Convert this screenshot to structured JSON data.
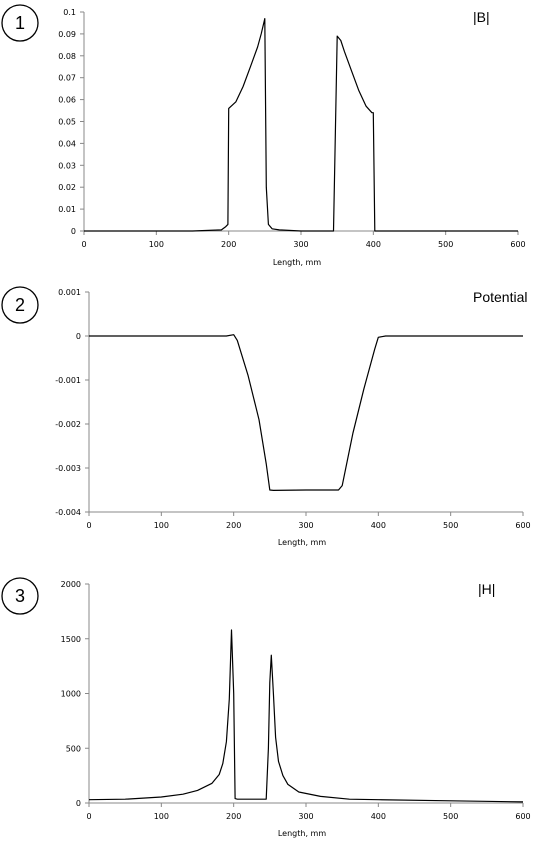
{
  "chart_data": [
    {
      "type": "line",
      "badge": "1",
      "annotation": "|B|",
      "xlabel": "Length, mm",
      "xlim": [
        0,
        600
      ],
      "ylim": [
        0,
        0.1
      ],
      "xticks": [
        "0",
        "100",
        "200",
        "300",
        "400",
        "500",
        "600"
      ],
      "yticks": [
        "0",
        "0.01",
        "0.02",
        "0.03",
        "0.04",
        "0.05",
        "0.06",
        "0.07",
        "0.08",
        "0.09",
        "0.1"
      ],
      "series": [
        {
          "x": [
            0,
            150,
            190,
            196,
            199,
            200,
            210,
            220,
            230,
            240,
            245,
            250,
            252,
            255,
            260,
            270,
            300,
            345,
            350,
            355,
            360,
            370,
            380,
            390,
            398,
            400,
            402,
            420,
            500,
            600
          ],
          "y": [
            0,
            0,
            0.0005,
            0.002,
            0.003,
            0.056,
            0.059,
            0.066,
            0.075,
            0.084,
            0.09,
            0.097,
            0.02,
            0.003,
            0.001,
            0.0005,
            0,
            0,
            0.089,
            0.087,
            0.082,
            0.073,
            0.064,
            0.057,
            0.054,
            0.054,
            0,
            0,
            0,
            0
          ]
        }
      ]
    },
    {
      "type": "line",
      "badge": "2",
      "annotation": "Potential",
      "xlabel": "Length, mm",
      "xlim": [
        0,
        600
      ],
      "ylim": [
        -0.004,
        0.001
      ],
      "xticks": [
        "0",
        "100",
        "200",
        "300",
        "400",
        "500",
        "600"
      ],
      "yticks": [
        "-0.004",
        "-0.003",
        "-0.002",
        "-0.001",
        "0",
        "0.001"
      ],
      "series": [
        {
          "x": [
            0,
            190,
            200,
            205,
            220,
            235,
            245,
            250,
            255,
            300,
            345,
            350,
            355,
            365,
            380,
            395,
            400,
            410,
            600
          ],
          "y": [
            0,
            0,
            3e-05,
            -0.0001,
            -0.0009,
            -0.0019,
            -0.0029,
            -0.0035,
            -0.00351,
            -0.0035,
            -0.0035,
            -0.0034,
            -0.003,
            -0.0022,
            -0.0012,
            -0.0003,
            -3e-05,
            0,
            0
          ]
        }
      ]
    },
    {
      "type": "line",
      "badge": "3",
      "annotation": "|H|",
      "xlabel": "Length, mm",
      "xlim": [
        0,
        600
      ],
      "ylim": [
        0,
        2000
      ],
      "xticks": [
        "0",
        "100",
        "200",
        "300",
        "400",
        "500",
        "600"
      ],
      "yticks": [
        "0",
        "500",
        "1000",
        "1500",
        "2000"
      ],
      "series": [
        {
          "x": [
            0,
            50,
            100,
            130,
            150,
            170,
            180,
            185,
            190,
            194,
            197,
            200,
            202,
            205,
            245,
            248,
            250,
            252,
            255,
            258,
            262,
            268,
            275,
            290,
            320,
            360,
            400,
            500,
            600
          ],
          "y": [
            30,
            35,
            55,
            80,
            115,
            180,
            260,
            360,
            560,
            950,
            1580,
            1000,
            40,
            35,
            35,
            500,
            1100,
            1350,
            1000,
            600,
            380,
            250,
            170,
            100,
            60,
            35,
            30,
            20,
            10
          ]
        }
      ]
    }
  ]
}
